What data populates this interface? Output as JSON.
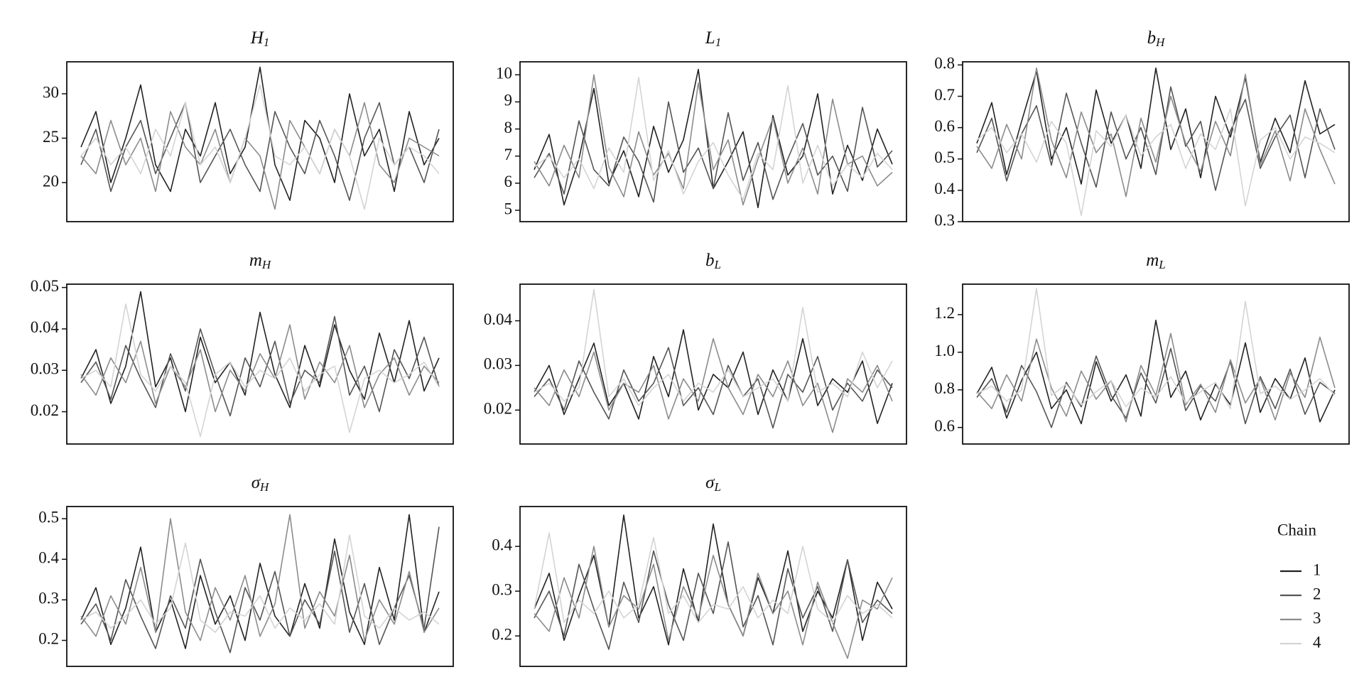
{
  "chart_data": [
    {
      "type": "line",
      "title": "H",
      "title_sub": "1",
      "ylim": [
        15.6,
        33.6
      ],
      "yticks": [
        20,
        25,
        30
      ],
      "series": [
        {
          "name": "1",
          "color": "#222222",
          "values": [
            24,
            28,
            20,
            25,
            31,
            22,
            19,
            26,
            23,
            29,
            21,
            24,
            33,
            22,
            18,
            27,
            25,
            20,
            30,
            23,
            26,
            19,
            28,
            22,
            25
          ]
        },
        {
          "name": "2",
          "color": "#555555",
          "values": [
            22,
            26,
            19,
            24,
            27,
            21,
            25,
            29,
            20,
            23,
            26,
            22,
            19,
            28,
            24,
            21,
            27,
            23,
            18,
            25,
            29,
            22,
            24,
            20,
            26
          ]
        },
        {
          "name": "3",
          "color": "#8c8c8c",
          "values": [
            23,
            21,
            27,
            22,
            25,
            19,
            28,
            24,
            22,
            26,
            20,
            25,
            23,
            17,
            27,
            24,
            21,
            26,
            23,
            29,
            22,
            20,
            25,
            24,
            23
          ]
        },
        {
          "name": "4",
          "color": "#d4d4d4",
          "values": [
            23,
            25,
            22,
            24,
            21,
            26,
            23,
            29,
            22,
            24,
            20,
            25,
            31,
            23,
            22,
            24,
            21,
            26,
            23,
            17,
            25,
            22,
            24,
            23,
            21
          ]
        }
      ]
    },
    {
      "type": "line",
      "title": "L",
      "title_sub": "1",
      "ylim": [
        4.58,
        10.48
      ],
      "yticks": [
        5,
        6,
        7,
        8,
        9,
        10
      ],
      "series": [
        {
          "name": "1",
          "color": "#222222",
          "values": [
            6.5,
            7.8,
            5.2,
            6.9,
            9.5,
            6.0,
            7.2,
            5.5,
            8.1,
            6.4,
            7.6,
            10.2,
            5.8,
            6.8,
            7.9,
            5.1,
            8.5,
            6.3,
            7.0,
            9.3,
            5.6,
            7.4,
            6.1,
            8.0,
            6.7
          ]
        },
        {
          "name": "2",
          "color": "#555555",
          "values": [
            6.2,
            7.1,
            5.6,
            8.3,
            6.5,
            5.9,
            7.7,
            6.8,
            5.3,
            9.0,
            6.4,
            7.3,
            5.8,
            8.6,
            6.1,
            7.5,
            5.4,
            6.9,
            8.2,
            6.3,
            7.0,
            5.7,
            8.8,
            6.6,
            7.2
          ]
        },
        {
          "name": "3",
          "color": "#8c8c8c",
          "values": [
            6.8,
            5.9,
            7.4,
            6.2,
            10.0,
            6.6,
            5.5,
            7.9,
            6.3,
            7.1,
            5.8,
            9.7,
            6.5,
            7.6,
            5.2,
            6.9,
            8.4,
            6.0,
            7.3,
            5.6,
            9.1,
            6.7,
            7.0,
            5.9,
            6.4
          ]
        },
        {
          "name": "4",
          "color": "#d4d4d4",
          "values": [
            6.6,
            7.0,
            6.2,
            6.9,
            5.8,
            7.3,
            6.4,
            9.9,
            6.1,
            7.2,
            5.6,
            6.8,
            7.5,
            6.3,
            5.4,
            7.1,
            6.5,
            9.6,
            6.0,
            7.4,
            5.9,
            6.7,
            6.2,
            7.1,
            6.5
          ]
        }
      ]
    },
    {
      "type": "line",
      "title": "b",
      "title_sub": "H",
      "ylim": [
        0.3,
        0.81
      ],
      "yticks": [
        0.3,
        0.4,
        0.5,
        0.6,
        0.7,
        0.8
      ],
      "series": [
        {
          "name": "1",
          "color": "#222222",
          "values": [
            0.55,
            0.68,
            0.45,
            0.62,
            0.78,
            0.5,
            0.6,
            0.42,
            0.72,
            0.55,
            0.64,
            0.47,
            0.79,
            0.53,
            0.66,
            0.44,
            0.7,
            0.57,
            0.76,
            0.49,
            0.63,
            0.52,
            0.75,
            0.58,
            0.61
          ]
        },
        {
          "name": "2",
          "color": "#555555",
          "values": [
            0.52,
            0.63,
            0.43,
            0.58,
            0.67,
            0.48,
            0.71,
            0.55,
            0.41,
            0.65,
            0.5,
            0.6,
            0.45,
            0.73,
            0.54,
            0.62,
            0.4,
            0.59,
            0.69,
            0.47,
            0.57,
            0.64,
            0.44,
            0.66,
            0.53
          ]
        },
        {
          "name": "3",
          "color": "#8c8c8c",
          "values": [
            0.54,
            0.47,
            0.61,
            0.5,
            0.79,
            0.56,
            0.44,
            0.65,
            0.52,
            0.58,
            0.38,
            0.63,
            0.49,
            0.7,
            0.55,
            0.46,
            0.62,
            0.51,
            0.77,
            0.48,
            0.59,
            0.43,
            0.66,
            0.53,
            0.42
          ]
        },
        {
          "name": "4",
          "color": "#d4d4d4",
          "values": [
            0.56,
            0.6,
            0.52,
            0.58,
            0.49,
            0.62,
            0.55,
            0.32,
            0.59,
            0.54,
            0.64,
            0.51,
            0.57,
            0.61,
            0.47,
            0.58,
            0.53,
            0.66,
            0.35,
            0.56,
            0.6,
            0.5,
            0.57,
            0.55,
            0.52
          ]
        }
      ]
    },
    {
      "type": "line",
      "title": "m",
      "title_sub": "H",
      "ylim": [
        0.0122,
        0.0508
      ],
      "yticks": [
        0.02,
        0.03,
        0.04,
        0.05
      ],
      "series": [
        {
          "name": "1",
          "color": "#222222",
          "values": [
            0.028,
            0.035,
            0.022,
            0.031,
            0.049,
            0.026,
            0.033,
            0.02,
            0.038,
            0.027,
            0.032,
            0.024,
            0.044,
            0.029,
            0.021,
            0.036,
            0.026,
            0.041,
            0.03,
            0.023,
            0.039,
            0.027,
            0.042,
            0.025,
            0.033
          ]
        },
        {
          "name": "2",
          "color": "#555555",
          "values": [
            0.027,
            0.032,
            0.023,
            0.036,
            0.028,
            0.021,
            0.034,
            0.025,
            0.04,
            0.029,
            0.019,
            0.033,
            0.026,
            0.037,
            0.022,
            0.03,
            0.027,
            0.043,
            0.024,
            0.031,
            0.02,
            0.035,
            0.028,
            0.038,
            0.026
          ]
        },
        {
          "name": "3",
          "color": "#8c8c8c",
          "values": [
            0.029,
            0.024,
            0.033,
            0.027,
            0.037,
            0.022,
            0.031,
            0.026,
            0.035,
            0.02,
            0.03,
            0.025,
            0.034,
            0.028,
            0.041,
            0.023,
            0.032,
            0.027,
            0.036,
            0.021,
            0.029,
            0.033,
            0.024,
            0.031,
            0.027
          ]
        },
        {
          "name": "4",
          "color": "#d4d4d4",
          "values": [
            0.028,
            0.03,
            0.026,
            0.046,
            0.029,
            0.025,
            0.031,
            0.027,
            0.014,
            0.029,
            0.032,
            0.026,
            0.03,
            0.028,
            0.033,
            0.025,
            0.029,
            0.031,
            0.015,
            0.028,
            0.03,
            0.027,
            0.029,
            0.032,
            0.026
          ]
        }
      ]
    },
    {
      "type": "line",
      "title": "b",
      "title_sub": "L",
      "ylim": [
        0.0124,
        0.0482
      ],
      "yticks": [
        0.02,
        0.03,
        0.04
      ],
      "series": [
        {
          "name": "1",
          "color": "#222222",
          "values": [
            0.024,
            0.03,
            0.019,
            0.027,
            0.035,
            0.021,
            0.026,
            0.018,
            0.032,
            0.023,
            0.038,
            0.02,
            0.028,
            0.025,
            0.033,
            0.019,
            0.029,
            0.022,
            0.036,
            0.021,
            0.027,
            0.024,
            0.031,
            0.017,
            0.026
          ]
        },
        {
          "name": "2",
          "color": "#555555",
          "values": [
            0.023,
            0.027,
            0.02,
            0.031,
            0.024,
            0.018,
            0.029,
            0.022,
            0.026,
            0.034,
            0.021,
            0.025,
            0.019,
            0.03,
            0.023,
            0.027,
            0.016,
            0.028,
            0.024,
            0.032,
            0.02,
            0.026,
            0.022,
            0.029,
            0.025
          ]
        },
        {
          "name": "3",
          "color": "#8c8c8c",
          "values": [
            0.025,
            0.021,
            0.029,
            0.023,
            0.033,
            0.02,
            0.026,
            0.024,
            0.03,
            0.018,
            0.027,
            0.022,
            0.036,
            0.025,
            0.019,
            0.028,
            0.023,
            0.031,
            0.021,
            0.026,
            0.015,
            0.027,
            0.024,
            0.03,
            0.022
          ]
        },
        {
          "name": "4",
          "color": "#d4d4d4",
          "values": [
            0.024,
            0.026,
            0.022,
            0.025,
            0.047,
            0.023,
            0.027,
            0.021,
            0.025,
            0.028,
            0.022,
            0.026,
            0.024,
            0.029,
            0.023,
            0.025,
            0.027,
            0.022,
            0.043,
            0.024,
            0.026,
            0.023,
            0.033,
            0.025,
            0.031
          ]
        }
      ]
    },
    {
      "type": "line",
      "title": "m",
      "title_sub": "L",
      "ylim": [
        0.512,
        1.362
      ],
      "yticks": [
        0.6,
        0.8,
        {
          "value": 1,
          "label": "1.0"
        },
        1.2
      ],
      "series": [
        {
          "name": "1",
          "color": "#222222",
          "values": [
            0.78,
            0.92,
            0.65,
            0.85,
            1.0,
            0.7,
            0.8,
            0.62,
            0.95,
            0.74,
            0.88,
            0.66,
            1.17,
            0.76,
            0.9,
            0.64,
            0.83,
            0.72,
            1.05,
            0.68,
            0.86,
            0.75,
            0.97,
            0.63,
            0.8
          ]
        },
        {
          "name": "2",
          "color": "#555555",
          "values": [
            0.76,
            0.86,
            0.68,
            0.93,
            0.79,
            0.6,
            0.84,
            0.71,
            0.98,
            0.77,
            0.65,
            0.89,
            0.73,
            1.02,
            0.69,
            0.82,
            0.74,
            0.95,
            0.62,
            0.87,
            0.7,
            0.91,
            0.67,
            0.84,
            0.78
          ]
        },
        {
          "name": "3",
          "color": "#8c8c8c",
          "values": [
            0.79,
            0.7,
            0.88,
            0.74,
            1.07,
            0.81,
            0.66,
            0.9,
            0.75,
            0.85,
            0.63,
            0.93,
            0.77,
            1.1,
            0.72,
            0.83,
            0.68,
            0.96,
            0.73,
            0.86,
            0.64,
            0.89,
            0.76,
            1.08,
            0.81
          ]
        },
        {
          "name": "4",
          "color": "#d4d4d4",
          "values": [
            0.78,
            0.82,
            0.74,
            0.8,
            1.34,
            0.77,
            0.83,
            0.72,
            0.79,
            0.85,
            0.71,
            0.81,
            0.76,
            0.87,
            0.73,
            0.79,
            0.84,
            0.7,
            1.27,
            0.78,
            0.82,
            0.75,
            0.8,
            0.86,
            0.77
          ]
        }
      ]
    },
    {
      "type": "line",
      "title": "σ",
      "title_sub": "H",
      "ylim": [
        0.136,
        0.53
      ],
      "yticks": [
        0.2,
        0.3,
        0.4,
        0.5
      ],
      "series": [
        {
          "name": "1",
          "color": "#222222",
          "values": [
            0.25,
            0.33,
            0.19,
            0.28,
            0.43,
            0.22,
            0.3,
            0.18,
            0.36,
            0.24,
            0.31,
            0.2,
            0.39,
            0.26,
            0.21,
            0.34,
            0.23,
            0.45,
            0.27,
            0.19,
            0.38,
            0.25,
            0.51,
            0.22,
            0.32
          ]
        },
        {
          "name": "2",
          "color": "#555555",
          "values": [
            0.24,
            0.29,
            0.2,
            0.35,
            0.26,
            0.18,
            0.31,
            0.23,
            0.4,
            0.27,
            0.17,
            0.33,
            0.25,
            0.37,
            0.21,
            0.3,
            0.24,
            0.42,
            0.22,
            0.34,
            0.19,
            0.28,
            0.36,
            0.23,
            0.48
          ]
        },
        {
          "name": "3",
          "color": "#8c8c8c",
          "values": [
            0.26,
            0.21,
            0.31,
            0.24,
            0.38,
            0.22,
            0.5,
            0.27,
            0.2,
            0.33,
            0.25,
            0.36,
            0.21,
            0.29,
            0.51,
            0.23,
            0.32,
            0.26,
            0.41,
            0.2,
            0.3,
            0.24,
            0.37,
            0.22,
            0.28
          ]
        },
        {
          "name": "4",
          "color": "#d4d4d4",
          "values": [
            0.25,
            0.27,
            0.23,
            0.26,
            0.3,
            0.24,
            0.28,
            0.44,
            0.25,
            0.22,
            0.27,
            0.26,
            0.31,
            0.23,
            0.28,
            0.25,
            0.29,
            0.24,
            0.46,
            0.26,
            0.23,
            0.28,
            0.25,
            0.27,
            0.24
          ]
        }
      ]
    },
    {
      "type": "line",
      "title": "σ",
      "title_sub": "L",
      "ylim": [
        0.132,
        0.489
      ],
      "yticks": [
        0.2,
        0.3,
        0.4
      ],
      "series": [
        {
          "name": "1",
          "color": "#222222",
          "values": [
            0.26,
            0.34,
            0.19,
            0.29,
            0.38,
            0.22,
            0.47,
            0.24,
            0.31,
            0.18,
            0.35,
            0.23,
            0.45,
            0.27,
            0.2,
            0.33,
            0.25,
            0.39,
            0.21,
            0.3,
            0.24,
            0.37,
            0.19,
            0.32,
            0.26
          ]
        },
        {
          "name": "2",
          "color": "#555555",
          "values": [
            0.24,
            0.3,
            0.2,
            0.36,
            0.26,
            0.17,
            0.32,
            0.23,
            0.39,
            0.27,
            0.19,
            0.34,
            0.25,
            0.41,
            0.22,
            0.29,
            0.18,
            0.35,
            0.24,
            0.31,
            0.21,
            0.37,
            0.23,
            0.28,
            0.25
          ]
        },
        {
          "name": "3",
          "color": "#8c8c8c",
          "values": [
            0.25,
            0.21,
            0.33,
            0.24,
            0.4,
            0.22,
            0.29,
            0.26,
            0.36,
            0.19,
            0.31,
            0.24,
            0.38,
            0.27,
            0.2,
            0.34,
            0.25,
            0.3,
            0.18,
            0.32,
            0.23,
            0.15,
            0.28,
            0.26,
            0.33
          ]
        },
        {
          "name": "4",
          "color": "#d4d4d4",
          "values": [
            0.26,
            0.43,
            0.23,
            0.28,
            0.25,
            0.3,
            0.24,
            0.27,
            0.42,
            0.25,
            0.29,
            0.23,
            0.27,
            0.26,
            0.31,
            0.24,
            0.28,
            0.25,
            0.4,
            0.26,
            0.23,
            0.29,
            0.25,
            0.27,
            0.24
          ]
        }
      ]
    }
  ],
  "legend": {
    "title": "Chain"
  }
}
